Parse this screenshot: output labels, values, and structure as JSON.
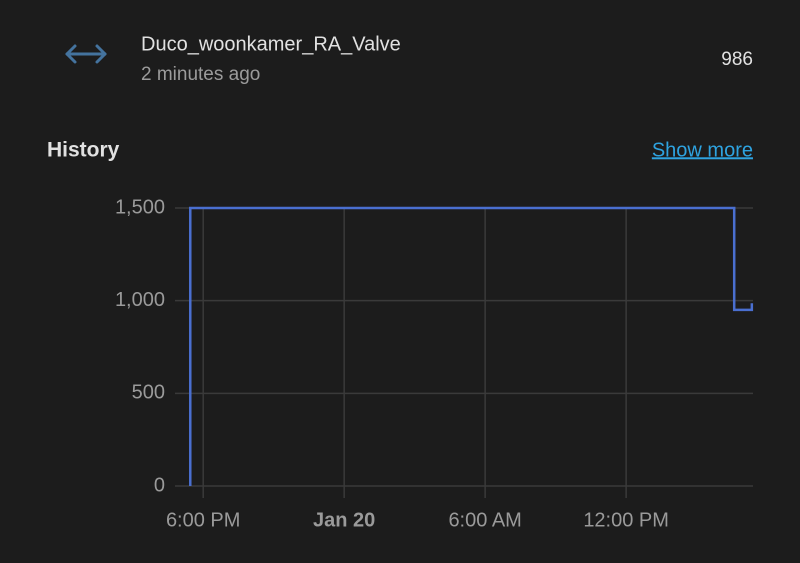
{
  "header": {
    "entity_name": "Duco_woonkamer_RA_Valve",
    "last_changed": "2 minutes ago",
    "state": "986"
  },
  "history": {
    "title": "History",
    "link": "Show more"
  },
  "chart_data": {
    "type": "line",
    "step": true,
    "x": [
      17.45,
      17.45,
      40.6,
      40.6,
      41.35,
      41.35
    ],
    "series": [
      {
        "name": "Duco_woonkamer_RA_Valve",
        "color": "#4a6fd0",
        "values": [
          0,
          1500,
          1500,
          950,
          950,
          986
        ]
      }
    ],
    "xlim": [
      16.8,
      41.4
    ],
    "xticks": [
      {
        "value": 18,
        "label": "6:00 PM"
      },
      {
        "value": 24,
        "label": "Jan 20"
      },
      {
        "value": 30,
        "label": "6:00 AM"
      },
      {
        "value": 36,
        "label": "12:00 PM"
      }
    ],
    "ylim": [
      0,
      1500
    ],
    "yticks": [
      {
        "value": 0,
        "label": "0"
      },
      {
        "value": 500,
        "label": "500"
      },
      {
        "value": 1000,
        "label": "1,000"
      },
      {
        "value": 1500,
        "label": "1,500"
      }
    ],
    "grid": true
  }
}
